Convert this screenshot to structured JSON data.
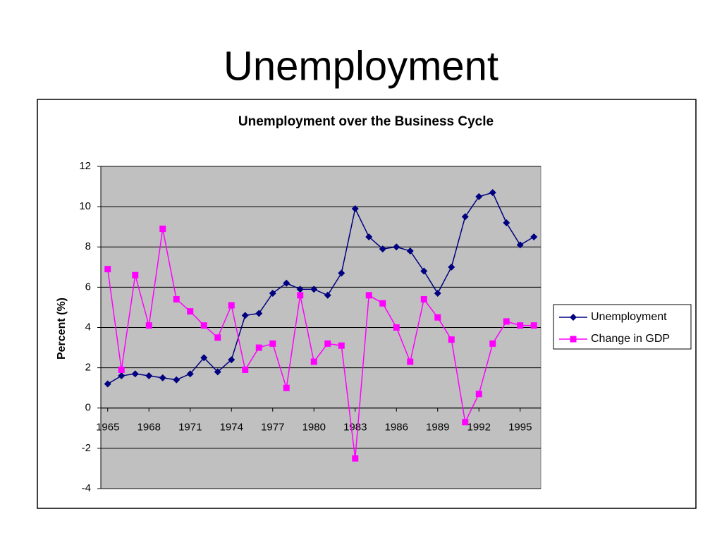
{
  "page": {
    "title": "Unemployment"
  },
  "chart_data": {
    "type": "line",
    "title": "Unemployment over the Business Cycle",
    "y_label": "Percent (%)",
    "x": [
      1965,
      1966,
      1967,
      1968,
      1969,
      1970,
      1971,
      1972,
      1973,
      1974,
      1975,
      1976,
      1977,
      1978,
      1979,
      1980,
      1981,
      1982,
      1983,
      1984,
      1985,
      1986,
      1987,
      1988,
      1989,
      1990,
      1991,
      1992,
      1993,
      1994,
      1995,
      1996
    ],
    "series": [
      {
        "name": "Unemployment",
        "color": "#000080",
        "marker": "diamond",
        "values": [
          1.2,
          1.6,
          1.7,
          1.6,
          1.5,
          1.4,
          1.7,
          2.5,
          1.8,
          2.4,
          4.6,
          4.7,
          5.7,
          6.2,
          5.9,
          5.9,
          5.6,
          6.7,
          9.9,
          8.5,
          7.9,
          8.0,
          7.8,
          6.8,
          5.7,
          7.0,
          9.5,
          10.5,
          10.7,
          9.2,
          8.1,
          8.5
        ]
      },
      {
        "name": "Change in GDP",
        "color": "#ff00ff",
        "marker": "square",
        "values": [
          6.9,
          1.9,
          6.6,
          4.1,
          8.9,
          5.4,
          4.8,
          4.1,
          3.5,
          5.1,
          1.9,
          3.0,
          3.2,
          1.0,
          5.6,
          2.3,
          3.2,
          3.1,
          -2.5,
          5.6,
          5.2,
          4.0,
          2.3,
          5.4,
          4.5,
          3.4,
          -0.7,
          0.7,
          3.2,
          4.3,
          4.1,
          4.1
        ]
      }
    ],
    "xlim": [
      1964.5,
      1996.5
    ],
    "xticks": [
      1965,
      1968,
      1971,
      1974,
      1977,
      1980,
      1983,
      1986,
      1989,
      1992,
      1995
    ],
    "ylim": [
      -4,
      12
    ],
    "yticks": [
      -4,
      -2,
      0,
      2,
      4,
      6,
      8,
      10,
      12
    ],
    "grid": true,
    "legend": "right"
  }
}
